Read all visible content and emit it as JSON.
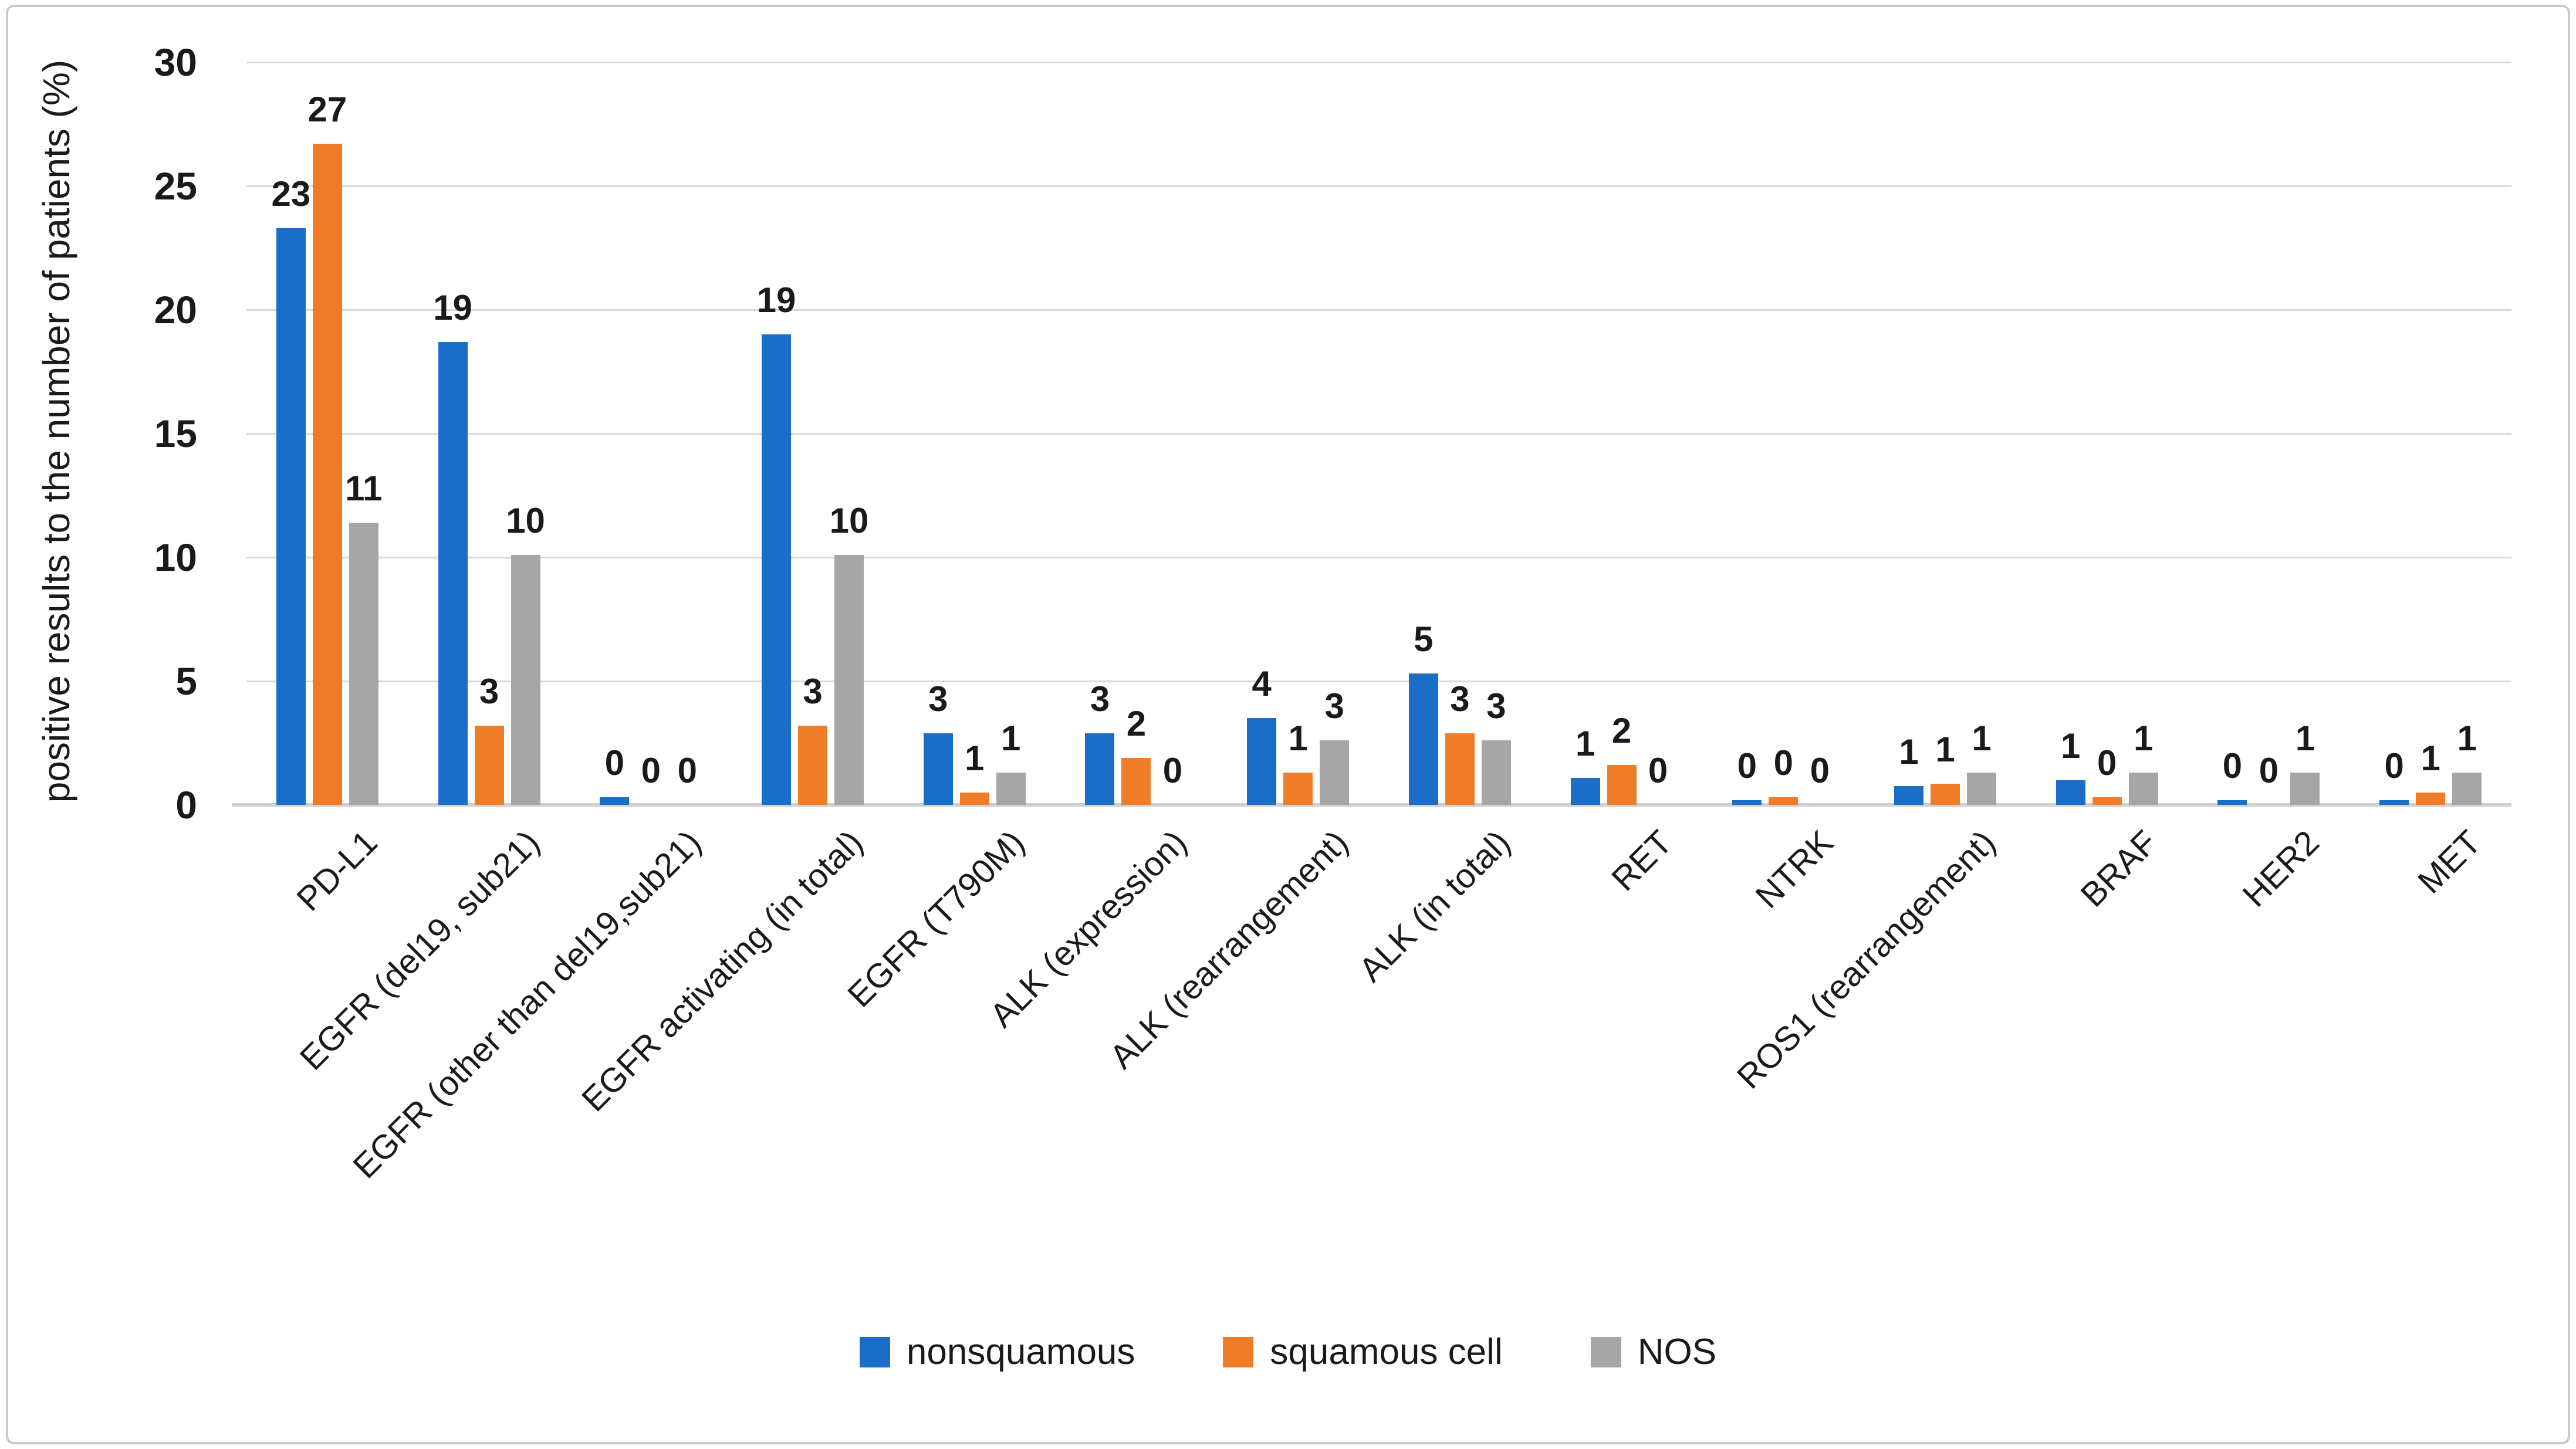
{
  "figure": {
    "background": "#ffffff",
    "border_color": "#c9c9c9",
    "gridline_color": "#d9d9d9",
    "axis_line_color": "#cfcfcf",
    "text_color": "#1a1a1a"
  },
  "chart_data": {
    "type": "bar",
    "title": "",
    "xlabel": "",
    "ylabel": "positive results to the number of patients (%)",
    "ylim": [
      0,
      30
    ],
    "yticks": [
      0,
      5,
      10,
      15,
      20,
      25,
      30
    ],
    "grid": "horizontal",
    "legend_position": "bottom-center",
    "categories": [
      "PD-L1",
      "EGFR (del19, sub21)",
      "EGFR (other than del19,sub21)",
      "EGFR activating (in total)",
      "EGFR (T790M)",
      "ALK (expression)",
      "ALK (rearrangement)",
      "ALK (in total)",
      "RET",
      "NTRK",
      "ROS1 (rearrangement)",
      "BRAF",
      "HER2",
      "MET"
    ],
    "series": [
      {
        "name": "nonsquamous",
        "color": "#1b6ec7",
        "labels": [
          23,
          19,
          0,
          19,
          3,
          3,
          4,
          5,
          1,
          0,
          1,
          1,
          0,
          0
        ],
        "bar_heights_pct": [
          23.3,
          18.7,
          0.3,
          19.0,
          2.9,
          2.9,
          3.5,
          5.3,
          1.1,
          0.2,
          0.75,
          1.0,
          0.2,
          0.2
        ]
      },
      {
        "name": "squamous cell",
        "color": "#ef7d28",
        "labels": [
          27,
          3,
          0,
          3,
          1,
          2,
          1,
          3,
          2,
          0,
          1,
          0,
          0,
          1
        ],
        "bar_heights_pct": [
          26.7,
          3.2,
          0,
          3.2,
          0.5,
          1.9,
          1.3,
          2.9,
          1.6,
          0.3,
          0.85,
          0.3,
          0,
          0.5
        ]
      },
      {
        "name": "NOS",
        "color": "#a6a6a6",
        "labels": [
          11,
          10,
          0,
          10,
          1,
          0,
          3,
          3,
          0,
          0,
          1,
          1,
          1,
          1
        ],
        "bar_heights_pct": [
          11.4,
          10.1,
          0,
          10.1,
          1.3,
          0,
          2.6,
          2.6,
          0,
          0,
          1.3,
          1.3,
          1.3,
          1.3
        ]
      }
    ]
  }
}
